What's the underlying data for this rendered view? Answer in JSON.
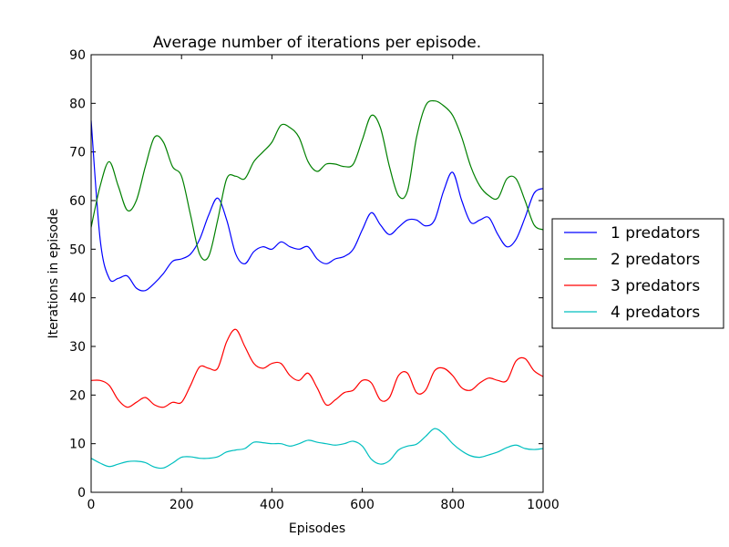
{
  "chart_data": {
    "type": "line",
    "title": "Average number of iterations per episode.",
    "xlabel": "Episodes",
    "ylabel": "Iterations in episode",
    "xlim": [
      0,
      1000
    ],
    "ylim": [
      0,
      90
    ],
    "xticks": [
      0,
      200,
      400,
      600,
      800,
      1000
    ],
    "yticks": [
      0,
      10,
      20,
      30,
      40,
      50,
      60,
      70,
      80,
      90
    ],
    "grid": false,
    "legend_position": "outside-right",
    "x": [
      0,
      20,
      40,
      60,
      80,
      100,
      120,
      140,
      160,
      180,
      200,
      220,
      240,
      260,
      280,
      300,
      320,
      340,
      360,
      380,
      400,
      420,
      440,
      460,
      480,
      500,
      520,
      540,
      560,
      580,
      600,
      620,
      640,
      660,
      680,
      700,
      720,
      740,
      760,
      780,
      800,
      820,
      840,
      860,
      880,
      900,
      920,
      940,
      960,
      980,
      1000
    ],
    "series": [
      {
        "name": "1 predators",
        "color": "#0000ff",
        "values": [
          76.5,
          52,
          44,
          44,
          44.5,
          42,
          41.5,
          43,
          45,
          47.5,
          48,
          49,
          52,
          57,
          60.5,
          56,
          49,
          47,
          49.5,
          50.5,
          50,
          51.5,
          50.5,
          50,
          50.5,
          48,
          47,
          48,
          48.5,
          50,
          54,
          57.5,
          55,
          53,
          54.5,
          56,
          56,
          54.8,
          56,
          62,
          65.8,
          60,
          55.5,
          56,
          56.5,
          53,
          50.5,
          52,
          56.5,
          61.5,
          62.5
        ]
      },
      {
        "name": "2 predators",
        "color": "#008000",
        "values": [
          54.5,
          63,
          68,
          63,
          58,
          60,
          67,
          73,
          72,
          67,
          65,
          57,
          49,
          48.5,
          56,
          64.5,
          65,
          64.5,
          68,
          70,
          72,
          75.5,
          75,
          73,
          68,
          66,
          67.5,
          67.5,
          67,
          67.5,
          72.5,
          77.5,
          75,
          67,
          61,
          62,
          73,
          79.5,
          80.5,
          79.5,
          77.5,
          73,
          67,
          63,
          61,
          60.5,
          64.5,
          64.5,
          60,
          55,
          54
        ]
      },
      {
        "name": "3 predators",
        "color": "#ff0000",
        "values": [
          23,
          23,
          22,
          19,
          17.5,
          18.5,
          19.5,
          18,
          17.5,
          18.5,
          18.5,
          22,
          25.8,
          25.5,
          25.5,
          31,
          33.5,
          30,
          26.5,
          25.5,
          26.5,
          26.5,
          24,
          23,
          24.5,
          21.5,
          18,
          19,
          20.5,
          21,
          23,
          22.5,
          19,
          19.5,
          24,
          24.5,
          20.5,
          21,
          25,
          25.5,
          24,
          21.5,
          21,
          22.5,
          23.5,
          23,
          23,
          27,
          27.5,
          25,
          23.8
        ]
      },
      {
        "name": "4 predators",
        "color": "#00bfbf",
        "values": [
          7,
          6,
          5.3,
          5.8,
          6.3,
          6.4,
          6.1,
          5.2,
          5,
          6,
          7.2,
          7.3,
          7,
          7,
          7.3,
          8.3,
          8.7,
          9,
          10.3,
          10.2,
          10,
          10,
          9.5,
          10,
          10.7,
          10.3,
          10,
          9.7,
          10,
          10.5,
          9.5,
          6.8,
          5.8,
          6.5,
          8.7,
          9.5,
          9.9,
          11.5,
          13.1,
          12,
          10,
          8.5,
          7.5,
          7.2,
          7.7,
          8.3,
          9.2,
          9.7,
          9,
          8.8,
          9
        ]
      }
    ]
  }
}
